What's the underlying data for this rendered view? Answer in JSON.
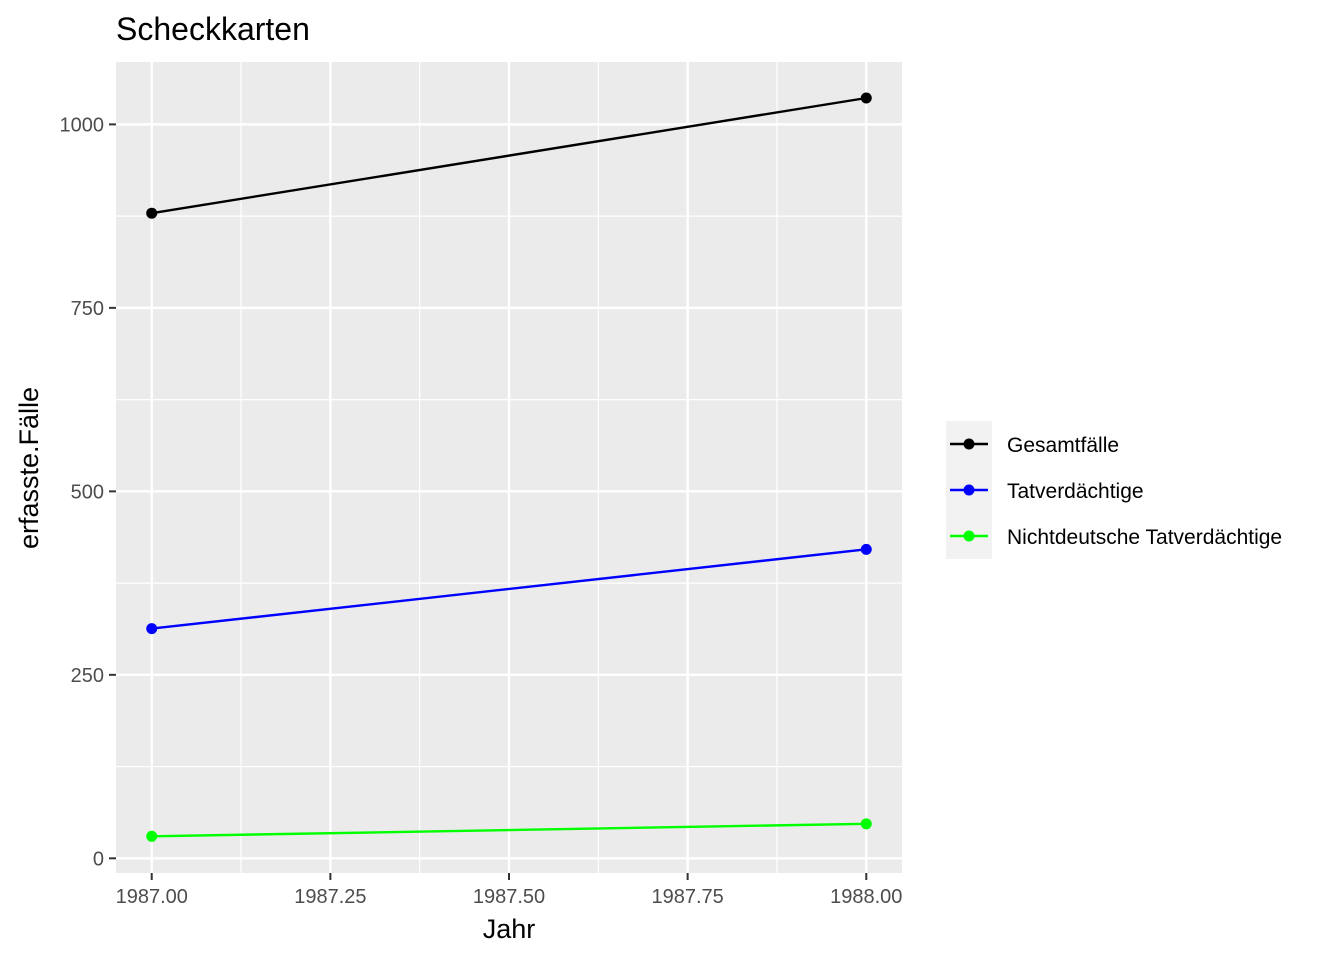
{
  "chart_data": {
    "type": "line",
    "title": "Scheckkarten",
    "xlabel": "Jahr",
    "ylabel": "erfasste.Fälle",
    "x": [
      1987,
      1988
    ],
    "xlim": [
      1986.95,
      1988.05
    ],
    "ylim": [
      -20,
      1085
    ],
    "x_ticks": [
      1987.0,
      1987.25,
      1987.5,
      1987.75,
      1988.0
    ],
    "x_tick_labels": [
      "1987.00",
      "1987.25",
      "1987.50",
      "1987.75",
      "1988.00"
    ],
    "x_minor_ticks": [
      1987.125,
      1987.375,
      1987.625,
      1987.875
    ],
    "y_ticks": [
      0,
      250,
      500,
      750,
      1000
    ],
    "y_tick_labels": [
      "0",
      "250",
      "500",
      "750",
      "1000"
    ],
    "y_minor_ticks": [
      125,
      375,
      625,
      875
    ],
    "grid": true,
    "legend_position": "right",
    "series": [
      {
        "name": "Gesamtfälle",
        "color": "#000000",
        "values": [
          879,
          1036
        ]
      },
      {
        "name": "Tatverdächtige",
        "color": "#0000ff",
        "values": [
          313,
          421
        ]
      },
      {
        "name": "Nichtdeutsche Tatverdächtige",
        "color": "#00ff00",
        "values": [
          30,
          47
        ]
      }
    ]
  }
}
